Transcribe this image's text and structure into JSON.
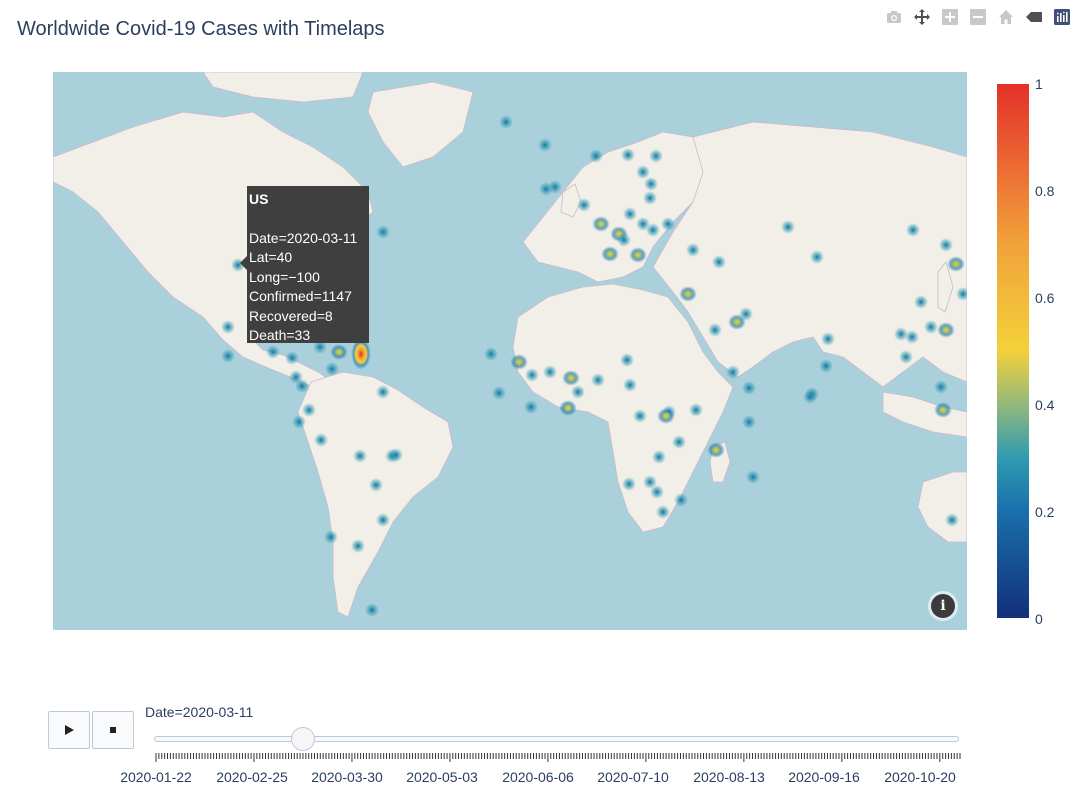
{
  "title": "Worldwide Covid-19 Cases with Timelaps",
  "modebar": [
    {
      "name": "camera-icon",
      "label": "Download plot as a png"
    },
    {
      "name": "pan-icon",
      "label": "Pan"
    },
    {
      "name": "zoom-in-icon",
      "label": "Zoom in"
    },
    {
      "name": "zoom-out-icon",
      "label": "Zoom out"
    },
    {
      "name": "home-icon",
      "label": "Reset view"
    },
    {
      "name": "eraser-icon",
      "label": "Toggle hover"
    },
    {
      "name": "plotly-logo-icon",
      "label": "Produced with Plotly"
    }
  ],
  "tooltip": {
    "title": "US",
    "lines": [
      "Date=2020-03-11",
      "Lat=40",
      "Long=−100",
      "Confirmed=1147",
      "Recovered=8",
      "Death=33"
    ]
  },
  "colorbar": {
    "ticks": [
      "0",
      "0.2",
      "0.4",
      "0.6",
      "0.8",
      "1"
    ],
    "colors": [
      "#12307a",
      "#1a6fac",
      "#2f9bb0",
      "#93b97c",
      "#f3d13a",
      "#f2a23a",
      "#e4302a"
    ]
  },
  "slider": {
    "current_label": "Date=2020-03-11",
    "current_index": 49,
    "total_steps": 280,
    "tick_labels": [
      "2020-01-22",
      "2020-02-25",
      "2020-03-30",
      "2020-05-03",
      "2020-06-06",
      "2020-07-10",
      "2020-08-13",
      "2020-09-16",
      "2020-10-20"
    ]
  },
  "map": {
    "ocean_color": "#aad0dc",
    "land_color": "#f2efe9",
    "info_label": "i"
  }
}
